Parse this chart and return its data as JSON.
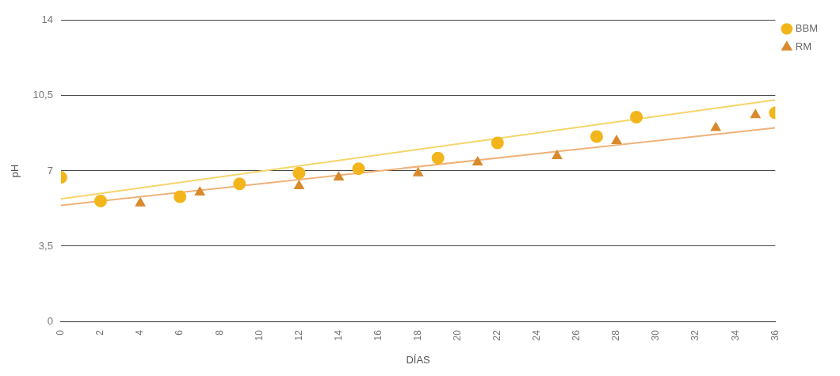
{
  "chart_data": {
    "type": "scatter",
    "xlabel": "DÍAS",
    "ylabel": "pH",
    "xlim": [
      0,
      36
    ],
    "xticks": [
      0,
      2,
      4,
      6,
      8,
      10,
      12,
      14,
      16,
      18,
      20,
      22,
      24,
      26,
      28,
      30,
      32,
      34,
      36
    ],
    "ylim": [
      0,
      14
    ],
    "yticks": [
      0,
      {
        "value": 3.5,
        "label": "3,5"
      },
      7,
      {
        "value": 10.5,
        "label": "10,5"
      },
      14
    ],
    "grid": "y",
    "legend": "top right",
    "series": [
      {
        "name": "BBM",
        "color": "#f2b61c",
        "marker": "circle",
        "x": [
          0,
          2,
          6,
          9,
          12,
          15,
          19,
          22,
          27,
          29,
          36
        ],
        "values": [
          6.7,
          5.6,
          5.8,
          6.4,
          6.9,
          7.1,
          7.6,
          8.3,
          8.6,
          9.5,
          9.7
        ]
      },
      {
        "name": "RM",
        "color": "#d98a2c",
        "marker": "triangle",
        "x": [
          4,
          7,
          12,
          14,
          18,
          21,
          25,
          28,
          33,
          35
        ],
        "values": [
          5.5,
          6.0,
          6.3,
          6.7,
          6.9,
          7.4,
          7.7,
          8.4,
          9.0,
          9.6
        ]
      },
      {
        "type": "line",
        "color": "#f5d56a",
        "marker": "none",
        "x": [
          0,
          36
        ],
        "values": [
          5.7,
          10.3
        ]
      },
      {
        "type": "line",
        "color": "#f0b27a",
        "marker": "none",
        "x": [
          0,
          36
        ],
        "values": [
          5.4,
          9.0
        ]
      }
    ]
  }
}
